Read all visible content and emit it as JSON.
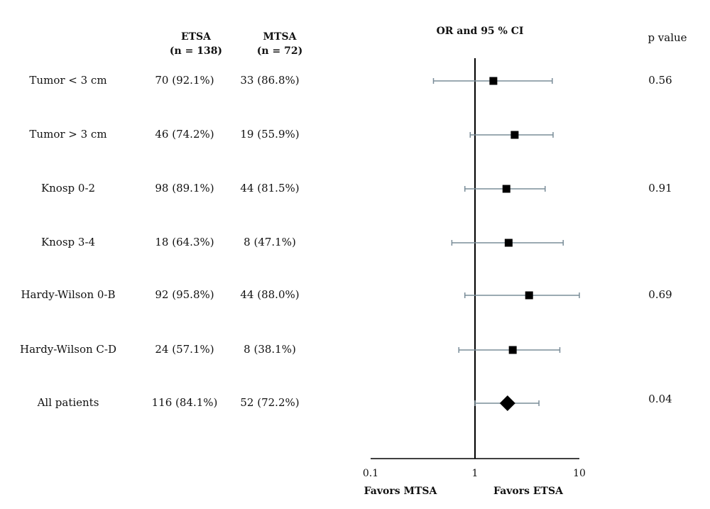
{
  "headers": {
    "etsa": "ETSA",
    "etsa_n": "(n = 138)",
    "mtsa": "MTSA",
    "mtsa_n": "(n = 72)",
    "or_ci": "OR and 95 % CI",
    "p_value": "p value"
  },
  "rows": [
    {
      "label": "Tumor < 3 cm",
      "etsa": "70 (92.1%)",
      "mtsa": "33 (86.8%)",
      "p": "0.56"
    },
    {
      "label": "Tumor > 3 cm",
      "etsa": "46 (74.2%)",
      "mtsa": "19 (55.9%)",
      "p": ""
    },
    {
      "label": "Knosp 0-2",
      "etsa": "98 (89.1%)",
      "mtsa": "44 (81.5%)",
      "p": "0.91"
    },
    {
      "label": "Knosp 3-4",
      "etsa": "18 (64.3%)",
      "mtsa": "8 (47.1%)",
      "p": ""
    },
    {
      "label": "Hardy-Wilson 0-B",
      "etsa": "92 (95.8%)",
      "mtsa": "44 (88.0%)",
      "p": "0.69"
    },
    {
      "label": "Hardy-Wilson C-D",
      "etsa": "24 (57.1%)",
      "mtsa": "8 (38.1%)",
      "p": ""
    },
    {
      "label": "All patients",
      "etsa": "116 (84.1%)",
      "mtsa": "52 (72.2%)",
      "p": "0.04"
    }
  ],
  "footer": {
    "favors_left": "Favors MTSA",
    "favors_right": "Favors ETSA"
  },
  "chart_data": {
    "type": "forest",
    "x_scale": "log",
    "xlim": [
      0.1,
      10
    ],
    "x_ticks": [
      "0.1",
      "1",
      "10"
    ],
    "reference_line": 1,
    "title": "OR and 95 % CI",
    "points": [
      {
        "label": "Tumor < 3 cm",
        "or": 1.5,
        "ci_low": 0.4,
        "ci_high": 5.5,
        "marker": "square"
      },
      {
        "label": "Tumor > 3 cm",
        "or": 2.4,
        "ci_low": 0.9,
        "ci_high": 5.6,
        "marker": "square"
      },
      {
        "label": "Knosp 0-2",
        "or": 2.0,
        "ci_low": 0.8,
        "ci_high": 4.7,
        "marker": "square"
      },
      {
        "label": "Knosp 3-4",
        "or": 2.1,
        "ci_low": 0.6,
        "ci_high": 7.0,
        "marker": "square"
      },
      {
        "label": "Hardy-Wilson 0-B",
        "or": 3.3,
        "ci_low": 0.8,
        "ci_high": 10.0,
        "marker": "square"
      },
      {
        "label": "Hardy-Wilson C-D",
        "or": 2.3,
        "ci_low": 0.7,
        "ci_high": 6.5,
        "marker": "square"
      },
      {
        "label": "All patients",
        "or": 2.05,
        "ci_low": 1.0,
        "ci_high": 4.1,
        "marker": "diamond"
      }
    ],
    "colors": {
      "whisker": "#7a8d99",
      "marker": "#000000",
      "axis": "#000000"
    }
  }
}
